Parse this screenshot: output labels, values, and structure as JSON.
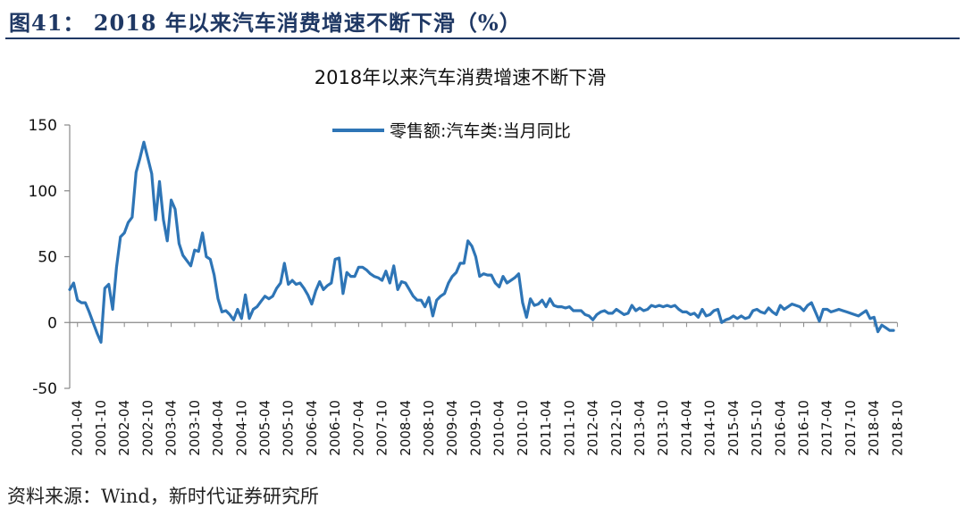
{
  "figure": {
    "title": "图41： 2018 年以来汽车消费增速不断下滑（%）",
    "source": "资料来源：Wind，新时代证券研究所"
  },
  "chart_data": {
    "type": "line",
    "title": "2018年以来汽车消费增速不断下滑",
    "xlabel": "",
    "ylabel": "",
    "ylim": [
      -50,
      150
    ],
    "yticks": [
      150,
      100,
      50,
      0,
      -50
    ],
    "grid": false,
    "legend_position": "top-center",
    "x_tick_labels": [
      "2001-04",
      "2001-10",
      "2002-04",
      "2002-10",
      "2003-04",
      "2003-10",
      "2004-04",
      "2004-10",
      "2005-04",
      "2005-10",
      "2006-04",
      "2006-10",
      "2007-04",
      "2007-10",
      "2008-04",
      "2008-10",
      "2009-04",
      "2009-10",
      "2010-04",
      "2010-10",
      "2011-04",
      "2011-10",
      "2012-04",
      "2012-10",
      "2013-04",
      "2013-10",
      "2014-04",
      "2014-10",
      "2015-04",
      "2015-10",
      "2016-04",
      "2016-10",
      "2017-04",
      "2017-10",
      "2018-04",
      "2018-10"
    ],
    "series": [
      {
        "name": "零售额:汽车类:当月同比",
        "color": "#2e75b6",
        "start": "2001-02",
        "values": [
          25,
          30,
          17,
          15,
          15,
          8,
          0,
          -8,
          -15,
          26,
          29,
          10,
          42,
          65,
          68,
          76,
          80,
          114,
          125,
          137,
          125,
          113,
          78,
          107,
          78,
          62,
          93,
          86,
          60,
          51,
          47,
          43,
          55,
          54,
          68,
          50,
          48,
          36,
          18,
          8,
          9,
          6,
          2,
          10,
          3,
          21,
          3,
          10,
          12,
          16,
          20,
          18,
          20,
          26,
          30,
          45,
          29,
          32,
          29,
          30,
          26,
          21,
          14,
          24,
          31,
          25,
          28,
          30,
          48,
          49,
          22,
          38,
          35,
          35,
          42,
          42,
          40,
          37,
          35,
          34,
          32,
          39,
          30,
          43,
          25,
          31,
          30,
          25,
          20,
          17,
          17,
          12,
          19,
          5,
          17,
          20,
          22,
          30,
          35,
          38,
          45,
          45,
          62,
          58,
          50,
          35,
          37,
          36,
          36,
          30,
          27,
          35,
          30,
          32,
          34,
          37,
          15,
          4,
          18,
          13,
          14,
          17,
          12,
          18,
          13,
          12,
          12,
          11,
          12,
          9,
          9,
          9,
          6,
          5,
          2,
          6,
          8,
          9,
          7,
          7,
          10,
          8,
          6,
          7,
          13,
          9,
          11,
          9,
          10,
          13,
          12,
          13,
          12,
          13,
          12,
          13,
          10,
          8,
          8,
          6,
          7,
          4,
          10,
          5,
          6,
          9,
          10,
          0,
          2,
          3,
          5,
          3,
          5,
          3,
          4,
          9,
          10,
          8,
          7,
          11,
          8,
          6,
          13,
          10,
          12,
          14,
          13,
          12,
          9,
          13,
          15,
          8,
          1,
          10,
          10,
          8,
          9,
          10,
          9,
          8,
          7,
          6,
          5,
          7,
          9,
          3,
          4,
          -7,
          -2,
          -4,
          -6,
          -6
        ]
      }
    ]
  }
}
